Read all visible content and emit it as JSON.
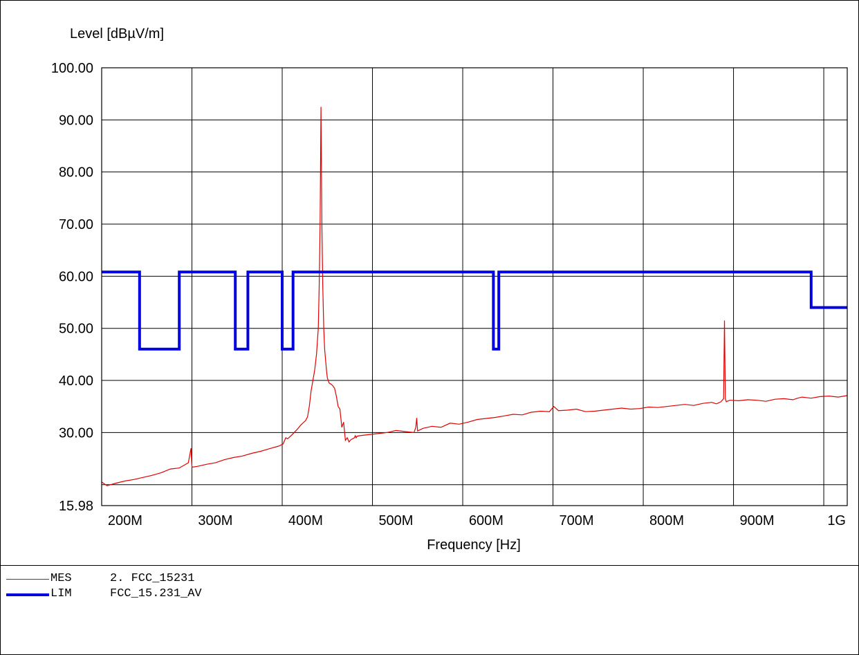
{
  "chart_data": {
    "type": "line",
    "ylabel": "Level [dBµV/m]",
    "xlabel": "Frequency [Hz]",
    "xlim": [
      174,
      1000
    ],
    "ylim": [
      15.98,
      100.0
    ],
    "y_ticks": [
      15.98,
      30.0,
      40.0,
      50.0,
      60.0,
      70.0,
      80.0,
      90.0,
      100.0
    ],
    "y_tick_labels": [
      "15.98",
      "30.00",
      "40.00",
      "50.00",
      "60.00",
      "70.00",
      "80.00",
      "90.00",
      "100.00"
    ],
    "y_grid": [
      20,
      30,
      40,
      50,
      60,
      70,
      80,
      90,
      100
    ],
    "x_ticks": [
      200,
      300,
      400,
      500,
      600,
      700,
      800,
      900,
      1000
    ],
    "x_tick_labels": [
      "200M",
      "300M",
      "400M",
      "500M",
      "600M",
      "700M",
      "800M",
      "900M",
      "1G"
    ],
    "x_grid": [
      274,
      374,
      474,
      574,
      674,
      774,
      874,
      974
    ],
    "grid": true,
    "series": [
      {
        "name": "MES",
        "color": "#e00000",
        "style": "thin",
        "x": [
          174,
          180,
          190,
          200,
          210,
          220,
          230,
          240,
          250,
          260,
          270,
          273,
          274,
          276,
          280,
          290,
          300,
          310,
          320,
          330,
          340,
          350,
          360,
          370,
          375,
          378,
          380,
          385,
          390,
          395,
          400,
          402,
          404,
          406,
          408,
          410,
          412,
          414,
          415,
          416,
          417,
          418,
          419,
          420,
          421,
          422,
          423,
          424,
          425,
          426,
          428,
          430,
          432,
          434,
          436,
          438,
          440,
          442,
          444,
          446,
          448,
          450,
          452,
          454,
          455,
          456,
          457,
          460,
          470,
          480,
          490,
          500,
          510,
          520,
          522,
          523,
          524,
          530,
          540,
          550,
          560,
          570,
          580,
          590,
          600,
          610,
          620,
          630,
          640,
          650,
          660,
          670,
          675,
          680,
          690,
          700,
          710,
          720,
          730,
          740,
          750,
          760,
          770,
          780,
          790,
          800,
          810,
          820,
          830,
          840,
          850,
          855,
          860,
          863,
          864,
          865,
          866,
          867,
          870,
          880,
          890,
          900,
          910,
          920,
          930,
          940,
          945,
          950,
          960,
          970,
          980,
          990,
          1000
        ],
        "y": [
          20.5,
          19.8,
          20.3,
          20.7,
          21.0,
          21.4,
          21.8,
          22.3,
          23.0,
          23.2,
          24.2,
          27.0,
          23.4,
          23.4,
          23.5,
          23.9,
          24.2,
          24.8,
          25.2,
          25.5,
          26.0,
          26.4,
          26.9,
          27.4,
          27.8,
          29.0,
          28.8,
          29.6,
          30.5,
          31.5,
          32.3,
          33.0,
          35.0,
          38.0,
          40.0,
          42.0,
          45.0,
          50.0,
          58.0,
          70.0,
          92.5,
          70.0,
          58.0,
          50.0,
          46.0,
          44.0,
          42.0,
          40.5,
          40.0,
          39.5,
          39.3,
          39.0,
          38.5,
          37.0,
          35.0,
          34.5,
          31.0,
          32.0,
          28.5,
          29.0,
          28.2,
          28.6,
          28.8,
          29.0,
          29.4,
          29.0,
          29.3,
          29.4,
          29.6,
          29.8,
          30.0,
          30.4,
          30.2,
          30.0,
          31.0,
          32.8,
          30.3,
          30.8,
          31.2,
          31.0,
          31.8,
          31.6,
          32.0,
          32.5,
          32.7,
          32.9,
          33.2,
          33.5,
          33.4,
          33.9,
          34.1,
          34.0,
          35.0,
          34.2,
          34.3,
          34.5,
          34.0,
          34.1,
          34.3,
          34.5,
          34.7,
          34.5,
          34.6,
          34.9,
          34.8,
          35.0,
          35.2,
          35.4,
          35.2,
          35.6,
          35.8,
          35.5,
          35.9,
          36.5,
          51.5,
          36.5,
          35.9,
          36.0,
          36.2,
          36.1,
          36.3,
          36.2,
          36.0,
          36.4,
          36.5,
          36.3,
          36.6,
          36.8,
          36.6,
          36.9,
          37.0,
          36.8,
          37.1
        ]
      },
      {
        "name": "LIM",
        "color": "#0000e0",
        "style": "thick",
        "x": [
          174,
          216,
          216,
          260,
          260,
          322,
          322,
          336,
          336,
          374,
          374,
          386,
          386,
          608,
          608,
          614,
          614,
          960,
          960,
          1000
        ],
        "y": [
          60.8,
          60.8,
          46.0,
          46.0,
          60.8,
          60.8,
          46.0,
          46.0,
          60.8,
          60.8,
          46.0,
          46.0,
          60.8,
          60.8,
          46.0,
          46.0,
          60.8,
          60.8,
          54.0,
          54.0
        ]
      }
    ]
  },
  "legend": [
    {
      "code": "MES",
      "name": "2. FCC_15231",
      "color": "#e00000",
      "style": "thin"
    },
    {
      "code": "LIM",
      "name": "FCC_15.231_AV",
      "color": "#0000e0",
      "style": "thick"
    }
  ]
}
